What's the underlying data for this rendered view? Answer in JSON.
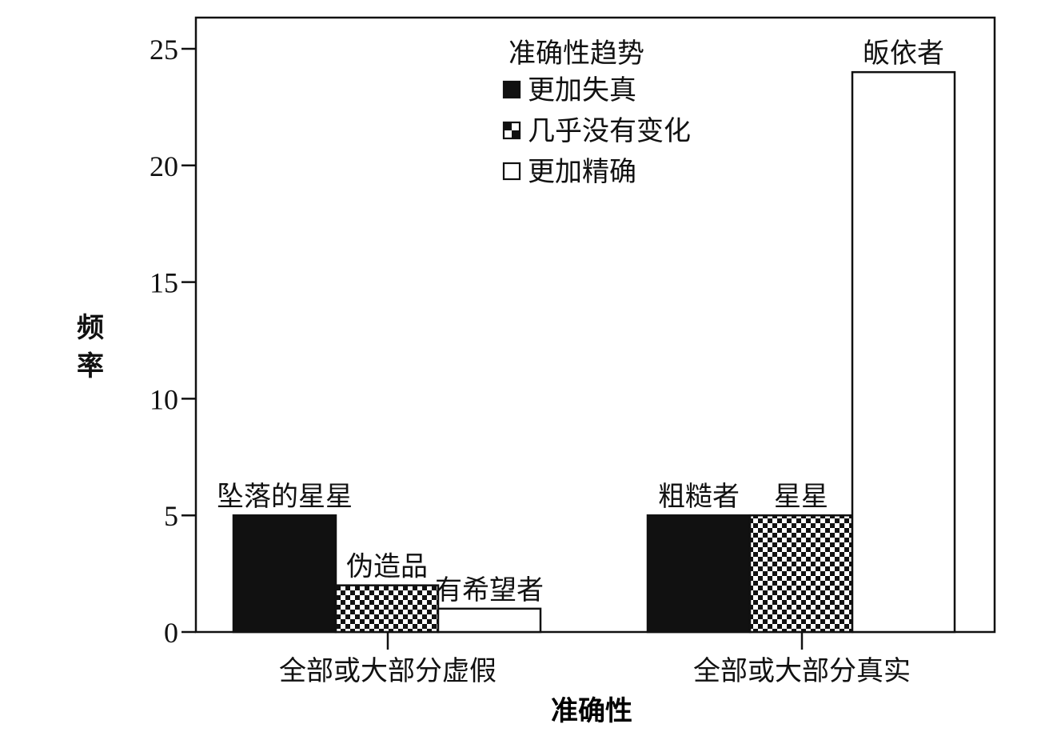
{
  "chart_data": {
    "type": "bar",
    "title": "",
    "xlabel": "准确性",
    "ylabel_chars": [
      "频",
      "率"
    ],
    "ylim": [
      0,
      26
    ],
    "y_ticks": [
      0,
      5,
      10,
      15,
      20,
      25
    ],
    "grid": false,
    "legend": {
      "title": "准确性趋势",
      "position": "top-center",
      "entries": [
        "更加失真",
        "几乎没有变化",
        "更加精确"
      ]
    },
    "categories": [
      "全部或大部分虚假",
      "全部或大部分真实"
    ],
    "series": [
      {
        "name": "更加失真",
        "values": [
          5,
          5
        ],
        "bar_labels": [
          "坠落的星星",
          "粗糙者"
        ],
        "fill": "solid"
      },
      {
        "name": "几乎没有变化",
        "values": [
          2,
          5
        ],
        "bar_labels": [
          "伪造品",
          "星星"
        ],
        "fill": "checker"
      },
      {
        "name": "更加精确",
        "values": [
          1,
          24
        ],
        "bar_labels": [
          "有希望者",
          "皈依者"
        ],
        "fill": "white"
      }
    ],
    "colors": {
      "ink": "#111111",
      "background": "#ffffff"
    }
  }
}
